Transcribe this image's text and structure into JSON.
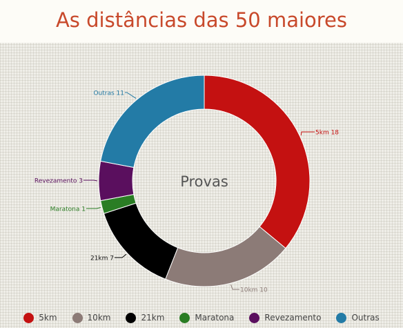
{
  "chart_data": {
    "type": "pie",
    "title": "As distâncias das 50 maiores",
    "center_label": "Provas",
    "categories": [
      "5km",
      "10km",
      "21km",
      "Maratona",
      "Revezamento",
      "Outras"
    ],
    "values": [
      18,
      10,
      7,
      1,
      3,
      11
    ],
    "colors": [
      "#c41111",
      "#8c7b77",
      "#000000",
      "#2a7d24",
      "#5a0f5e",
      "#237ba6"
    ],
    "slice_labels": [
      "5km 18",
      "10km 10",
      "21km 7",
      "Maratona 1",
      "Revezamento 3",
      "Outras 11"
    ],
    "legend_position": "bottom"
  }
}
